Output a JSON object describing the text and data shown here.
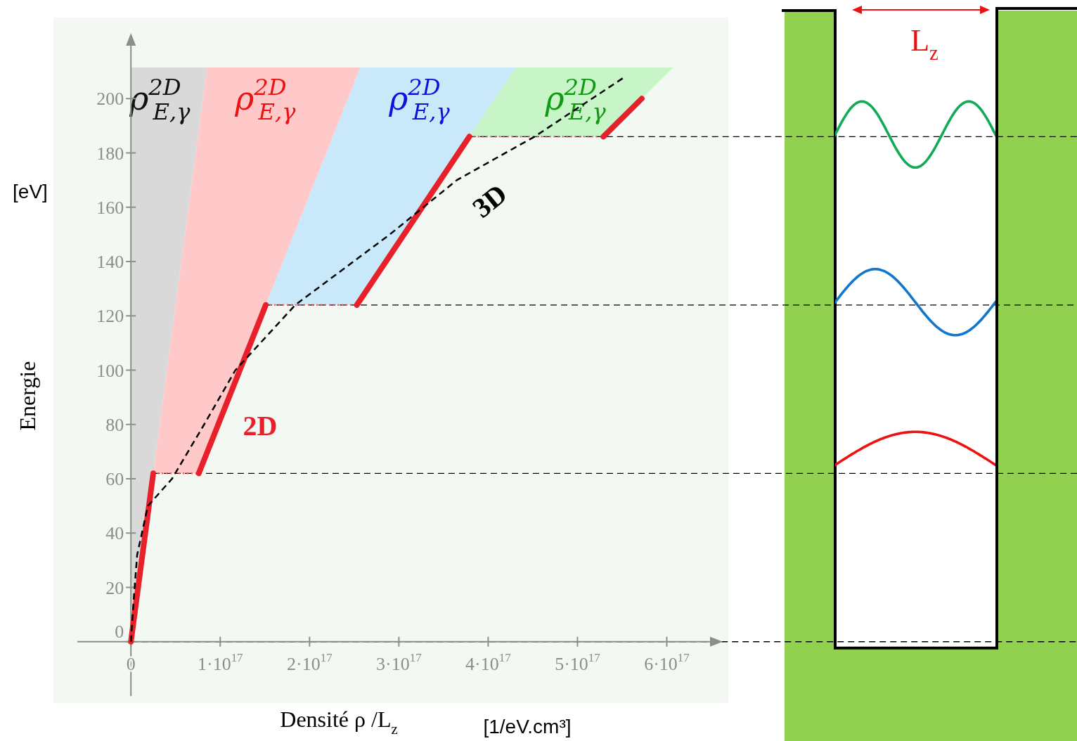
{
  "chart_data": {
    "type": "line",
    "xlabel": "Densité ρ /L$_{z}$",
    "ylabel": "Energie",
    "annotations": [
      "[eV]",
      "[1/eV.cm³]",
      "L$_{z}$",
      "ρ$^{2D}$$_{E,γ}$",
      "ρ$^{2D}$$_{E,γ}$",
      "ρ$^{2D}$$_{E,γ}$",
      "ρ$^{2D}$$_{E,γ}$"
    ],
    "xlim": [
      -6e+16,
      6.5e+17
    ],
    "ylim": [
      -20,
      220
    ],
    "xticks": [
      0,
      {
        "value": 1e+17,
        "label": "1·10$^{17}$"
      },
      {
        "value": 2e+17,
        "label": "2·10$^{17}$"
      },
      {
        "value": 3e+17,
        "label": "3·10$^{17}$"
      },
      {
        "value": 4e+17,
        "label": "4·10$^{17}$"
      },
      {
        "value": 5e+17,
        "label": "5·10$^{17}$"
      },
      {
        "value": 6e+17,
        "label": "6·10$^{17}$"
      }
    ],
    "yticks": [
      0,
      20,
      40,
      60,
      80,
      100,
      120,
      140,
      160,
      180,
      200
    ],
    "grid": false,
    "legend": false,
    "series": [
      {
        "color": "#f0606e",
        "line_style": "dotted",
        "x": [
          2.5e+16,
          7.6e+16,
          1e+17,
          1.51e+17,
          2.53e+17,
          3e+17,
          3.79e+17,
          5.29e+17
        ],
        "values": [
          62,
          62,
          null,
          124,
          124,
          null,
          186,
          186
        ]
      },
      {
        "color": "#e8202a",
        "line_style": "solid",
        "x": [
          0,
          2.5e+16
        ],
        "values": [
          0,
          62
        ]
      },
      {
        "name": "2D",
        "color": "#e8202a",
        "line_style": "solid",
        "x": [
          7.6e+16,
          1.51e+17
        ],
        "values": [
          62,
          124
        ]
      },
      {
        "color": "#e8202a",
        "line_style": "solid",
        "x": [
          2.53e+17,
          3.79e+17
        ],
        "values": [
          124,
          186
        ]
      },
      {
        "color": "#e8202a",
        "line_style": "solid",
        "x": [
          5.29e+17,
          5.72e+17
        ],
        "values": [
          186,
          200
        ]
      },
      {
        "name": "3D",
        "color": "#000000",
        "line_style": "dashed",
        "x": [
          0,
          3000000000000000.0,
          7000000000000000.0,
          1.9e+16,
          4.6e+16,
          8.2e+16,
          1.17e+17,
          1.84e+17,
          2.9e+17,
          3.65e+17,
          4.52e+17,
          5.53e+17
        ],
        "values": [
          0,
          15,
          32,
          50,
          60,
          80,
          100,
          124,
          150,
          170,
          186,
          208
        ]
      }
    ],
    "ref_lines": [
      {
        "axis": "y",
        "value": 62,
        "color": "#000000",
        "line_style": "dashed"
      },
      {
        "axis": "y",
        "value": 124,
        "color": "#000000",
        "line_style": "dashed"
      },
      {
        "axis": "y",
        "value": 186,
        "color": "#000000",
        "line_style": "dashed"
      },
      {
        "axis": "y",
        "value": 0,
        "color": "#000000",
        "line_style": "dashed"
      }
    ]
  }
}
